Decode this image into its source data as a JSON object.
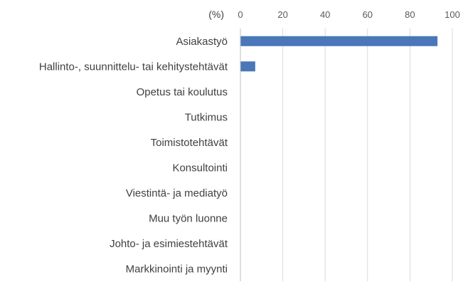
{
  "chart_data": {
    "type": "bar",
    "orientation": "horizontal",
    "unit_label": "(%)",
    "categories": [
      "Asiakastyö",
      "Hallinto-, suunnittelu- tai kehitystehtävät",
      "Opetus tai koulutus",
      "Tutkimus",
      "Toimistotehtävät",
      "Konsultointi",
      "Viestintä- ja mediatyö",
      "Muu työn luonne",
      "Johto- ja esimiestehtävät",
      "Markkinointi ja myynti"
    ],
    "values": [
      93,
      7,
      0,
      0,
      0,
      0,
      0,
      0,
      0,
      0
    ],
    "xlim": [
      0,
      100
    ],
    "xticks": [
      0,
      20,
      40,
      60,
      80,
      100
    ],
    "xtick_labels": [
      "0",
      "20",
      "40",
      "60",
      "80",
      "100"
    ],
    "axis_position": "top",
    "grid": true,
    "bar_color": "#4a77b8",
    "grid_color": "#d9d9d9"
  }
}
